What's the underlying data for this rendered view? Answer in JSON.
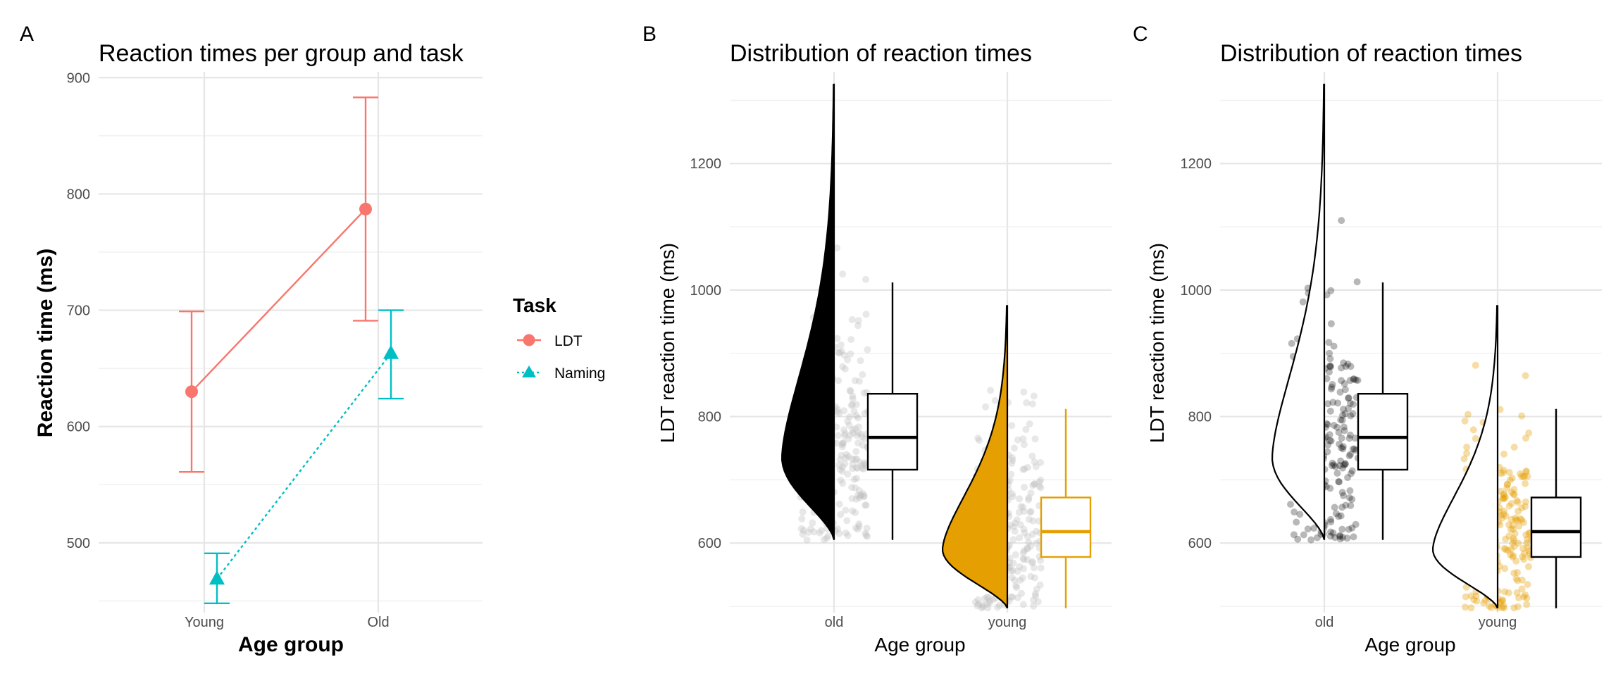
{
  "colors": {
    "ldt": "#F8766D",
    "naming": "#00BFC4",
    "old_fill": "#000000",
    "young_fill": "#E69F00",
    "jitter_grey": "#BEBEBE",
    "grid": "#E6E6E6"
  },
  "chart_data": [
    {
      "panel": "A",
      "type": "line",
      "title": "Reaction times per group and task",
      "xlabel": "Age group",
      "ylabel": "Reaction time (ms)",
      "categories": [
        "Young",
        "Old"
      ],
      "ylim": [
        440,
        905
      ],
      "yticks": [
        500,
        600,
        700,
        800,
        900
      ],
      "grid": true,
      "legend": {
        "title": "Task",
        "placement": "right"
      },
      "series": [
        {
          "name": "LDT",
          "shape": "circle",
          "linestyle": "solid",
          "values": [
            630,
            787
          ],
          "lower": [
            561,
            691
          ],
          "upper": [
            699,
            883
          ]
        },
        {
          "name": "Naming",
          "shape": "triangle",
          "linestyle": "dotted",
          "values": [
            469,
            663
          ],
          "lower": [
            448,
            624
          ],
          "upper": [
            491,
            700
          ]
        }
      ]
    },
    {
      "panel": "B",
      "type": "raincloud",
      "title": "Distribution of reaction times",
      "xlabel": "Age group",
      "ylabel": "LDT reaction time (ms)",
      "categories": [
        "old",
        "young"
      ],
      "ylim": [
        490,
        1345
      ],
      "yticks": [
        600,
        800,
        1000,
        1200
      ],
      "grid": true,
      "series": [
        {
          "name": "old",
          "box": {
            "lower_whisker": 605,
            "q1": 716,
            "median": 767,
            "q3": 836,
            "upper_whisker": 1012
          },
          "density_range": [
            605,
            1325
          ],
          "density_mode": 735
        },
        {
          "name": "young",
          "box": {
            "lower_whisker": 497,
            "q1": 578,
            "median": 618,
            "q3": 672,
            "upper_whisker": 812
          },
          "density_range": [
            497,
            975
          ],
          "density_mode": 590
        }
      ]
    },
    {
      "panel": "C",
      "type": "raincloud",
      "title": "Distribution of reaction times",
      "xlabel": "Age group",
      "ylabel": "LDT reaction time (ms)",
      "categories": [
        "old",
        "young"
      ],
      "ylim": [
        490,
        1345
      ],
      "yticks": [
        600,
        800,
        1000,
        1200
      ],
      "grid": true,
      "series": [
        {
          "name": "old",
          "box": {
            "lower_whisker": 605,
            "q1": 716,
            "median": 767,
            "q3": 836,
            "upper_whisker": 1012
          },
          "density_range": [
            605,
            1325
          ],
          "density_mode": 735
        },
        {
          "name": "young",
          "box": {
            "lower_whisker": 497,
            "q1": 578,
            "median": 618,
            "q3": 672,
            "upper_whisker": 812
          },
          "density_range": [
            497,
            975
          ],
          "density_mode": 590
        }
      ]
    }
  ]
}
